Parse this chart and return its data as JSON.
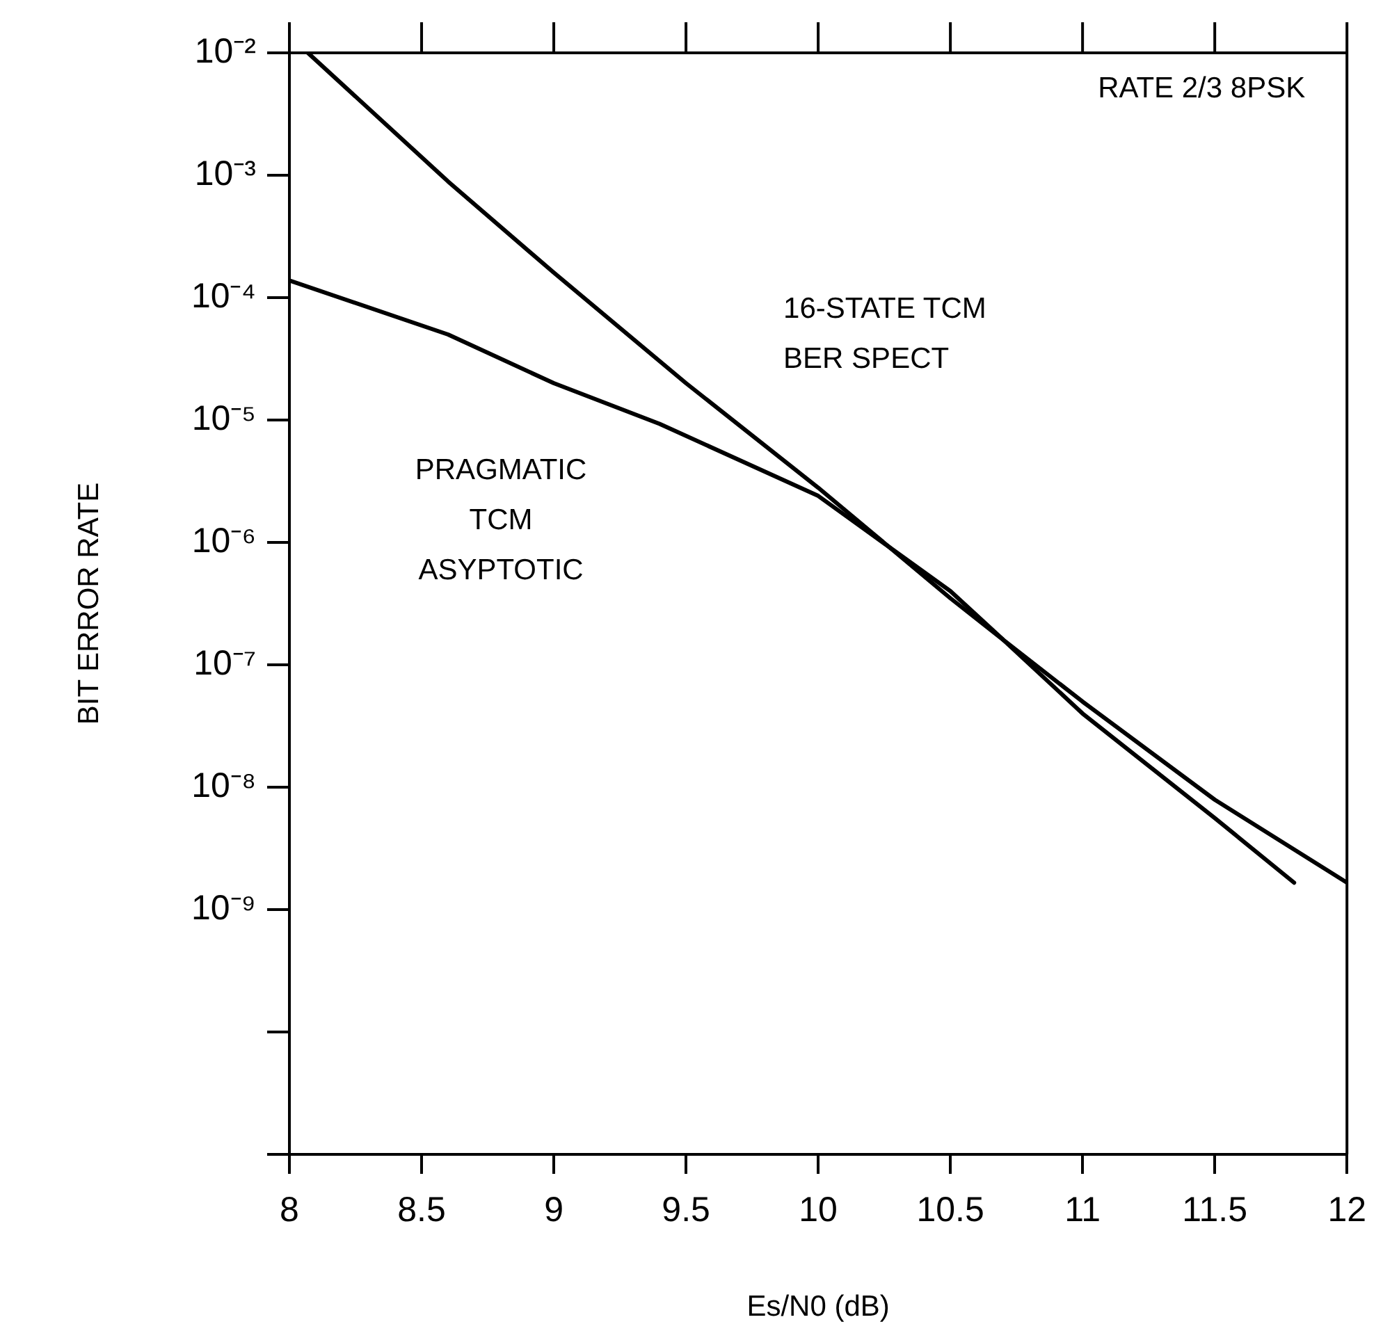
{
  "chart_data": {
    "type": "line",
    "xlabel": "Es/N0 (dB)",
    "ylabel": "BIT ERROR RATE",
    "log": "y",
    "grid": false,
    "legend": false,
    "marker": "none",
    "line_style": "solid",
    "xlim": [
      8,
      12
    ],
    "xticks": [
      8,
      8.5,
      9,
      9.5,
      10,
      10.5,
      11,
      11.5,
      12
    ],
    "ylim": [
      1e-11,
      0.01
    ],
    "yticks": [
      {
        "value": 0.01,
        "label": "10⁻²"
      },
      {
        "value": 0.001,
        "label": "10⁻³"
      },
      {
        "value": 0.0001,
        "label": "10⁻⁴"
      },
      {
        "value": 1e-05,
        "label": "10⁻⁵"
      },
      {
        "value": 1e-06,
        "label": "10⁻⁶"
      },
      {
        "value": 1e-07,
        "label": "10⁻⁷"
      },
      {
        "value": 1e-08,
        "label": "10⁻⁸"
      },
      {
        "value": 1e-09,
        "label": "10⁻⁹"
      },
      {
        "value": 1e-10,
        "label": null
      },
      {
        "value": 1e-11,
        "label": null
      }
    ],
    "series": [
      {
        "name": "16-STATE TCM\nBER SPECT",
        "color": "#000000",
        "x": [
          8.07,
          8.6,
          9,
          9.5,
          10,
          10.5,
          10.7,
          11,
          11.5,
          11.8
        ],
        "values": [
          0.01,
          0.00089,
          0.00016,
          2e-05,
          2.8e-06,
          3.5e-07,
          1.6e-07,
          4e-08,
          5.6e-09,
          1.66e-09
        ]
      },
      {
        "name": "PRAGMATIC\nTCM\nASYPTOTIC",
        "color": "#000000",
        "x": [
          8,
          8.6,
          9,
          9.4,
          10,
          10.5,
          10.7,
          11,
          11.5,
          12
        ],
        "values": [
          0.000138,
          5e-05,
          2e-05,
          9.3e-06,
          2.4e-06,
          4e-07,
          1.6e-07,
          5e-08,
          7.9e-09,
          1.66e-09
        ]
      }
    ],
    "annotations": [
      "RATE 2/3 8PSK"
    ]
  }
}
